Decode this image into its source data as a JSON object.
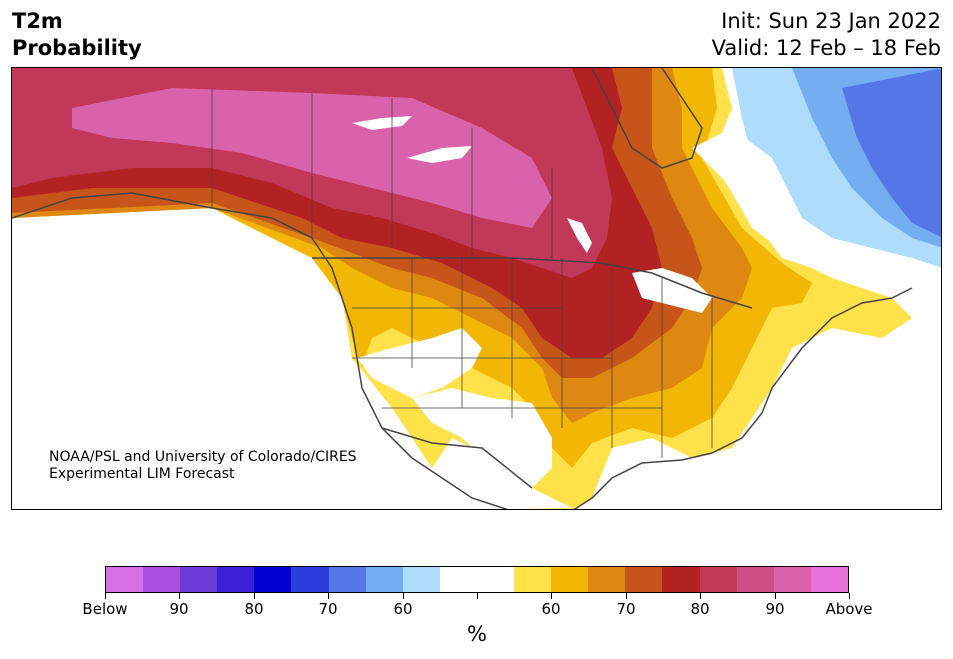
{
  "header": {
    "title_line1": "T2m",
    "title_line2": "Probability",
    "init": "Init: Sun 23 Jan 2022",
    "valid": "Valid: 12 Feb – 18 Feb"
  },
  "credit": {
    "line1": "NOAA/PSL and University of Colorado/CIRES",
    "line2": "Experimental LIM Forecast"
  },
  "legend": {
    "unit": "%",
    "colors": [
      "#d66ee6",
      "#a84fe0",
      "#6d3cd8",
      "#3a1fd6",
      "#0000d0",
      "#2a3fdb",
      "#5377e6",
      "#74aef0",
      "#aedcfb",
      "#ffffff",
      "#ffffff",
      "#ffe14a",
      "#f2b705",
      "#de8812",
      "#c75418",
      "#b22222",
      "#c23858",
      "#cf4e84",
      "#d962aa",
      "#e673dc"
    ],
    "ticks": [
      "Below",
      "90",
      "80",
      "70",
      "60",
      "",
      "60",
      "70",
      "80",
      "90",
      "Above"
    ]
  },
  "map": {
    "colors": {
      "above_90": "#d962aa",
      "above_80": "#c23858",
      "above_75": "#b22222",
      "above_70": "#c75418",
      "above_65": "#de8812",
      "above_60": "#f2b705",
      "above_55": "#ffe14a",
      "below_55": "#aedcfb",
      "below_60": "#74aef0",
      "below_70": "#5377e6",
      "below_80": "#4169e1",
      "land": "#ffffff",
      "outline": "#444444"
    }
  }
}
